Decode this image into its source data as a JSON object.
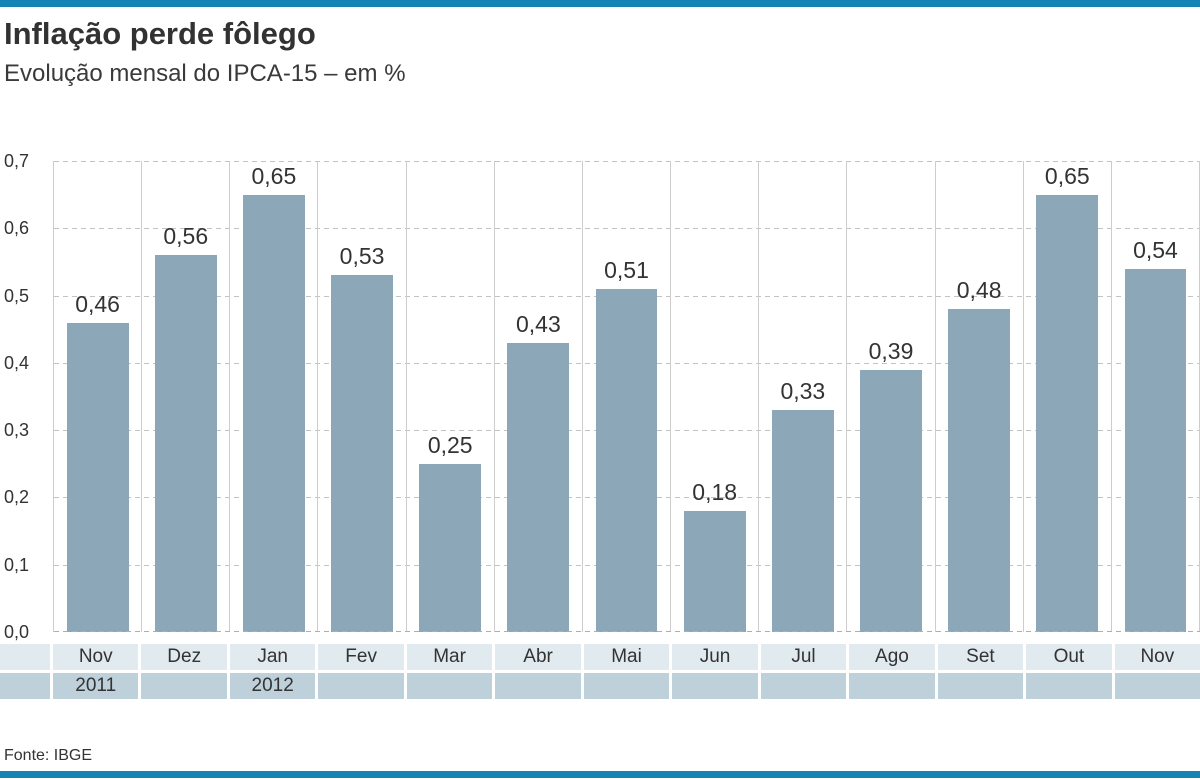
{
  "page": {
    "title": "Inflação perde fôlego",
    "subtitle": "Evolução mensal do IPCA-15 – em %",
    "source": "Fonte: IBGE"
  },
  "colors": {
    "accent_blue": "#1584b5",
    "bar_fill": "#8ca8b8",
    "month_band_bg": "#e0eaef",
    "year_band_bg": "#bed0da",
    "gridline": "#c3c3c3",
    "text": "#333333"
  },
  "chart_data": {
    "type": "bar",
    "title": "Inflação perde fôlego",
    "subtitle": "Evolução mensal do IPCA-15 – em %",
    "categories": [
      "Nov",
      "Dez",
      "Jan",
      "Fev",
      "Mar",
      "Abr",
      "Mai",
      "Jun",
      "Jul",
      "Ago",
      "Set",
      "Out",
      "Nov"
    ],
    "year_labels": [
      {
        "index": 0,
        "label": "2011"
      },
      {
        "index": 2,
        "label": "2012"
      }
    ],
    "values": [
      0.46,
      0.56,
      0.65,
      0.53,
      0.25,
      0.43,
      0.51,
      0.18,
      0.33,
      0.39,
      0.48,
      0.65,
      0.54
    ],
    "value_labels": [
      "0,46",
      "0,56",
      "0,65",
      "0,53",
      "0,25",
      "0,43",
      "0,51",
      "0,18",
      "0,33",
      "0,39",
      "0,48",
      "0,65",
      "0,54"
    ],
    "xlabel": "",
    "ylabel": "",
    "ylim": [
      0,
      0.7
    ],
    "ytick_labels": [
      "0,0",
      "0,1",
      "0,2",
      "0,3",
      "0,4",
      "0,5",
      "0,6",
      "0,7"
    ],
    "grid": "horizontal-dashed, vertical-solid-column-separators",
    "legend": "none",
    "source": "Fonte: IBGE"
  }
}
